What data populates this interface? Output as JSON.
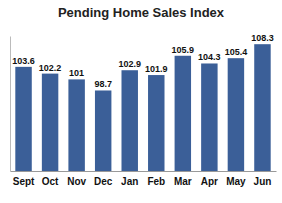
{
  "chart_data": {
    "type": "bar",
    "title": "Pending Home Sales Index",
    "categories": [
      "Sept",
      "Oct",
      "Nov",
      "Dec",
      "Jan",
      "Feb",
      "Mar",
      "Apr",
      "May",
      "Jun"
    ],
    "values": [
      103.6,
      102.2,
      101,
      98.7,
      102.9,
      101.9,
      105.9,
      104.3,
      105.4,
      108.3
    ],
    "color": "#3b5f98",
    "ylim": [
      82,
      110
    ],
    "yticks": [],
    "grid": false,
    "data_labels": true,
    "tick_labels": "x"
  }
}
